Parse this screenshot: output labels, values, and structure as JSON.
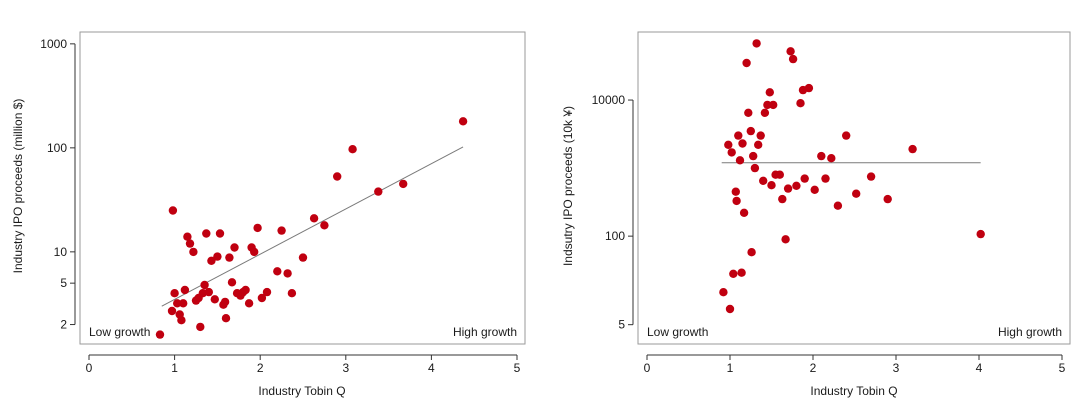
{
  "colors": {
    "points": "#c00010",
    "fit_line": "#7a7a7a",
    "frame": "#9a9a9a"
  },
  "chart_data": [
    {
      "type": "scatter",
      "title": "",
      "xlabel": "Industry Tobin Q",
      "ylabel": "Industry IPO proceeds (million $)",
      "y_scale": "log",
      "xlim": [
        0,
        5
      ],
      "ylim": [
        1.3,
        1300
      ],
      "x_ticks": [
        0,
        1,
        2,
        3,
        4,
        5
      ],
      "y_ticks": [
        2,
        5,
        10,
        100,
        1000
      ],
      "y_tick_labels": [
        "2",
        "5",
        "10",
        "100",
        "1000"
      ],
      "grid": false,
      "annotations": {
        "left": "Low growth",
        "right": "High growth"
      },
      "fit_line": [
        [
          0.85,
          3.0
        ],
        [
          4.37,
          102
        ]
      ],
      "points": [
        [
          0.83,
          1.6
        ],
        [
          0.98,
          25
        ],
        [
          1.0,
          4.0
        ],
        [
          0.97,
          2.7
        ],
        [
          1.03,
          3.2
        ],
        [
          1.06,
          2.5
        ],
        [
          1.08,
          2.2
        ],
        [
          1.1,
          3.2
        ],
        [
          1.12,
          4.3
        ],
        [
          1.15,
          14
        ],
        [
          1.18,
          12
        ],
        [
          1.22,
          10
        ],
        [
          1.25,
          3.4
        ],
        [
          1.28,
          3.6
        ],
        [
          1.3,
          1.9
        ],
        [
          1.33,
          4.0
        ],
        [
          1.35,
          4.8
        ],
        [
          1.37,
          15
        ],
        [
          1.4,
          4.1
        ],
        [
          1.43,
          8.2
        ],
        [
          1.47,
          3.5
        ],
        [
          1.5,
          9.0
        ],
        [
          1.53,
          15
        ],
        [
          1.57,
          3.1
        ],
        [
          1.59,
          3.3
        ],
        [
          1.6,
          2.3
        ],
        [
          1.64,
          8.8
        ],
        [
          1.67,
          5.1
        ],
        [
          1.7,
          11
        ],
        [
          1.73,
          4.0
        ],
        [
          1.77,
          3.8
        ],
        [
          1.8,
          4.1
        ],
        [
          1.83,
          4.3
        ],
        [
          1.87,
          3.2
        ],
        [
          1.9,
          11
        ],
        [
          1.93,
          10
        ],
        [
          1.97,
          17
        ],
        [
          2.02,
          3.6
        ],
        [
          2.08,
          4.1
        ],
        [
          2.2,
          6.5
        ],
        [
          2.25,
          16
        ],
        [
          2.32,
          6.2
        ],
        [
          2.37,
          4.0
        ],
        [
          2.5,
          8.8
        ],
        [
          2.63,
          21
        ],
        [
          2.75,
          18
        ],
        [
          2.9,
          53
        ],
        [
          3.08,
          97
        ],
        [
          3.38,
          38
        ],
        [
          3.67,
          45
        ],
        [
          4.37,
          180
        ]
      ]
    },
    {
      "type": "scatter",
      "title": "",
      "xlabel": "Industry Tobin Q",
      "ylabel": "Indsutry IPO proceeds (10k ¥)",
      "y_scale": "log",
      "xlim": [
        0,
        5
      ],
      "ylim": [
        2.6,
        100000
      ],
      "x_ticks": [
        0,
        1,
        2,
        3,
        4,
        5
      ],
      "y_ticks": [
        5,
        100,
        10000
      ],
      "y_tick_labels": [
        "5",
        "100",
        "10000"
      ],
      "grid": false,
      "annotations": {
        "left": "Low growth",
        "right": "High growth"
      },
      "fit_line": [
        [
          0.9,
          1200
        ],
        [
          4.02,
          1200
        ]
      ],
      "points": [
        [
          0.92,
          15
        ],
        [
          0.98,
          2200
        ],
        [
          1.0,
          8.5
        ],
        [
          1.02,
          1700
        ],
        [
          1.04,
          28
        ],
        [
          1.07,
          450
        ],
        [
          1.08,
          330
        ],
        [
          1.1,
          3000
        ],
        [
          1.12,
          1300
        ],
        [
          1.14,
          29
        ],
        [
          1.15,
          2300
        ],
        [
          1.17,
          220
        ],
        [
          1.2,
          35000
        ],
        [
          1.22,
          6500
        ],
        [
          1.25,
          3500
        ],
        [
          1.26,
          58
        ],
        [
          1.28,
          1500
        ],
        [
          1.3,
          1000
        ],
        [
          1.32,
          68000
        ],
        [
          1.34,
          2200
        ],
        [
          1.37,
          3000
        ],
        [
          1.4,
          650
        ],
        [
          1.42,
          6500
        ],
        [
          1.45,
          8500
        ],
        [
          1.48,
          13000
        ],
        [
          1.52,
          8500
        ],
        [
          1.5,
          560
        ],
        [
          1.55,
          800
        ],
        [
          1.6,
          800
        ],
        [
          1.63,
          350
        ],
        [
          1.67,
          90
        ],
        [
          1.7,
          500
        ],
        [
          1.73,
          52000
        ],
        [
          1.76,
          40000
        ],
        [
          1.8,
          550
        ],
        [
          1.85,
          9000
        ],
        [
          1.88,
          14000
        ],
        [
          1.9,
          700
        ],
        [
          1.95,
          15000
        ],
        [
          2.02,
          480
        ],
        [
          2.1,
          1500
        ],
        [
          2.15,
          700
        ],
        [
          2.22,
          1400
        ],
        [
          2.3,
          280
        ],
        [
          2.4,
          3000
        ],
        [
          2.52,
          420
        ],
        [
          2.7,
          750
        ],
        [
          2.9,
          350
        ],
        [
          3.2,
          1900
        ],
        [
          4.02,
          107
        ]
      ]
    }
  ]
}
